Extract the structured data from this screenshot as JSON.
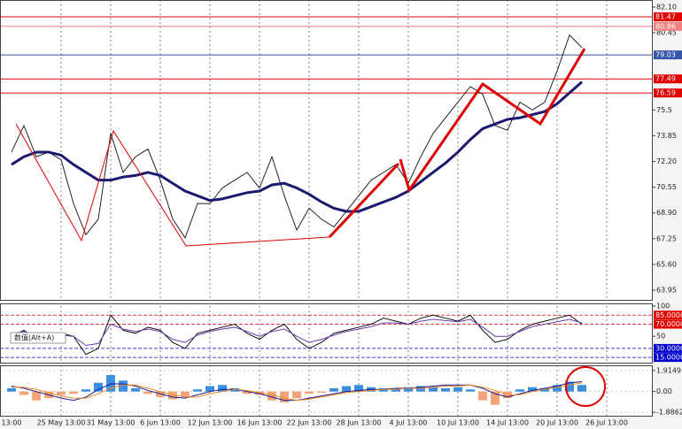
{
  "chart_data": [
    {
      "type": "line",
      "ylim": [
        63.27,
        82.55
      ],
      "yticks": [
        {
          "value": 82.1,
          "label": "82.10"
        },
        80.45,
        75.5,
        73.85,
        {
          "value": 72.2,
          "label": "72.20"
        },
        70.55,
        {
          "value": 68.9,
          "label": "68.90"
        },
        67.25,
        {
          "value": 65.6,
          "label": "65.60"
        },
        63.95
      ],
      "levels": [
        81.47,
        80.86,
        79.03,
        77.49,
        76.59
      ],
      "level_colors": [
        "#e00000",
        "#f08080",
        "#3355aa",
        "#e00000",
        "#e00000"
      ],
      "series": [
        {
          "color": "#222222",
          "values": [
            72.8,
            74.5,
            72.5,
            72.8,
            72.3,
            69.5,
            67.5,
            68.5,
            74.0,
            71.5,
            72.5,
            73.0,
            71.0,
            68.5,
            67.3,
            69.5,
            69.5,
            70.5,
            71.0,
            71.5,
            70.5,
            72.5,
            70.0,
            67.8,
            69.2,
            68.5,
            68.0,
            69.0,
            70.0,
            71.0,
            71.5,
            72.0,
            70.8,
            72.5,
            74.0,
            75.0,
            76.0,
            77.0,
            76.5,
            74.5,
            74.2,
            76.0,
            75.5,
            76.0,
            78.0,
            80.3,
            79.5,
            null,
            null,
            null,
            null,
            null
          ]
        },
        {
          "color": "#1a1a6e",
          "values": [
            72.0,
            72.5,
            72.8,
            72.8,
            72.6,
            72.0,
            71.5,
            71.0,
            71.0,
            71.2,
            71.3,
            71.5,
            71.3,
            70.8,
            70.3,
            70.0,
            69.7,
            69.8,
            70.0,
            70.2,
            70.3,
            70.7,
            70.8,
            70.5,
            70.1,
            69.6,
            69.2,
            69.0,
            69.0,
            69.3,
            69.6,
            69.9,
            70.3,
            70.9,
            71.5,
            72.1,
            72.8,
            73.6,
            74.3,
            74.6,
            74.9,
            75.0,
            75.2,
            75.4,
            75.9,
            76.6,
            77.3,
            null,
            null,
            null,
            null,
            null
          ]
        }
      ]
    },
    {
      "type": "line",
      "ylim": [
        5,
        100
      ],
      "yticks": [
        100,
        50
      ],
      "levels": [
        {
          "value": 85,
          "label": "85.0000"
        },
        {
          "value": 70,
          "label": "70.0000"
        },
        {
          "value": 30,
          "label": "30.0000"
        },
        {
          "value": 15,
          "label": "15.0000"
        }
      ],
      "level_colors": [
        "#e00000",
        "#e00000",
        "#0000cc",
        "#0000cc"
      ],
      "annotation": "数值(Alt+A)",
      "series": [
        {
          "color": "#111111",
          "values": [
            50,
            60,
            45,
            40,
            55,
            50,
            20,
            30,
            85,
            60,
            55,
            65,
            60,
            40,
            30,
            55,
            60,
            65,
            70,
            55,
            45,
            60,
            70,
            45,
            30,
            40,
            55,
            60,
            65,
            70,
            80,
            75,
            70,
            80,
            85,
            80,
            75,
            85,
            60,
            40,
            45,
            60,
            70,
            75,
            80,
            85,
            70,
            null,
            null,
            null,
            null,
            null
          ]
        },
        {
          "color": "#6a3fb5",
          "values": [
            55,
            58,
            52,
            48,
            52,
            50,
            35,
            38,
            70,
            62,
            58,
            62,
            58,
            45,
            40,
            52,
            58,
            62,
            65,
            58,
            50,
            58,
            62,
            50,
            40,
            45,
            52,
            58,
            62,
            66,
            72,
            72,
            70,
            75,
            78,
            76,
            74,
            78,
            65,
            50,
            50,
            58,
            66,
            70,
            74,
            78,
            72,
            null,
            null,
            null,
            null,
            null
          ]
        }
      ]
    },
    {
      "type": "bar",
      "ylim": [
        -2.28,
        2.39
      ],
      "yticks": [
        1.9149,
        {
          "value": 0,
          "label": "0.00"
        },
        -1.8862
      ],
      "up_color": "#3a8fe0",
      "down_color": "#f2a37a",
      "categories": [
        "13:00",
        null,
        null,
        null,
        "25 May 13:00",
        null,
        null,
        null,
        "31 May 13:00",
        null,
        null,
        null,
        "6 Jun 13:00",
        null,
        null,
        null,
        "12 Jun 13:00",
        null,
        null,
        null,
        "16 Jun 13:00",
        null,
        null,
        null,
        "22 Jun 13:00",
        null,
        null,
        null,
        "28 Jun 13:00",
        null,
        null,
        null,
        "4 Jul 13:00",
        null,
        null,
        null,
        "10 Jul 13:00",
        null,
        null,
        null,
        "14 Jul 13:00",
        null,
        null,
        null,
        "20 Jul 13:00",
        null,
        null,
        null,
        "26 Jul 13:00",
        null,
        null,
        null
      ],
      "values": [
        0.3,
        -0.3,
        -0.8,
        -0.6,
        -0.3,
        -0.2,
        0.2,
        0.8,
        1.5,
        1.0,
        0.3,
        -0.2,
        -0.5,
        -0.7,
        -0.5,
        0.2,
        0.5,
        0.6,
        0.3,
        -0.2,
        -0.3,
        -0.8,
        -1.0,
        -0.6,
        -0.2,
        -0.1,
        0.3,
        0.5,
        0.6,
        0.4,
        0.3,
        0.2,
        0.4,
        0.5,
        0.4,
        0.3,
        0.4,
        0.2,
        -0.8,
        -1.2,
        -0.6,
        0.2,
        0.4,
        0.3,
        0.6,
        0.9,
        0.6,
        null,
        null,
        null,
        null,
        null
      ],
      "series": [
        {
          "color": "#1a1a8e",
          "values": [
            0.5,
            0.3,
            0.0,
            -0.3,
            -0.6,
            -0.8,
            -0.5,
            0.2,
            0.7,
            0.7,
            0.5,
            0.1,
            -0.2,
            -0.5,
            -0.6,
            -0.3,
            0.0,
            0.2,
            0.2,
            0.0,
            -0.2,
            -0.5,
            -0.8,
            -0.8,
            -0.6,
            -0.4,
            -0.2,
            0.0,
            0.1,
            0.2,
            0.2,
            0.3,
            0.3,
            0.4,
            0.5,
            0.6,
            0.6,
            0.6,
            0.3,
            -0.2,
            -0.5,
            -0.2,
            0.1,
            0.3,
            0.5,
            0.8,
            0.9,
            null,
            null,
            null,
            null,
            null
          ]
        },
        {
          "color": "#f08a24",
          "values": [
            0.4,
            0.4,
            0.2,
            -0.1,
            -0.4,
            -0.6,
            -0.6,
            -0.2,
            0.3,
            0.6,
            0.6,
            0.3,
            0.0,
            -0.3,
            -0.5,
            -0.5,
            -0.2,
            0.0,
            0.2,
            0.1,
            -0.1,
            -0.3,
            -0.6,
            -0.8,
            -0.7,
            -0.5,
            -0.3,
            -0.1,
            0.0,
            0.1,
            0.2,
            0.2,
            0.3,
            0.3,
            0.4,
            0.5,
            0.5,
            0.6,
            0.4,
            0.1,
            -0.3,
            -0.3,
            0.0,
            0.2,
            0.4,
            0.6,
            0.8,
            null,
            null,
            null,
            null,
            null
          ]
        }
      ]
    }
  ]
}
